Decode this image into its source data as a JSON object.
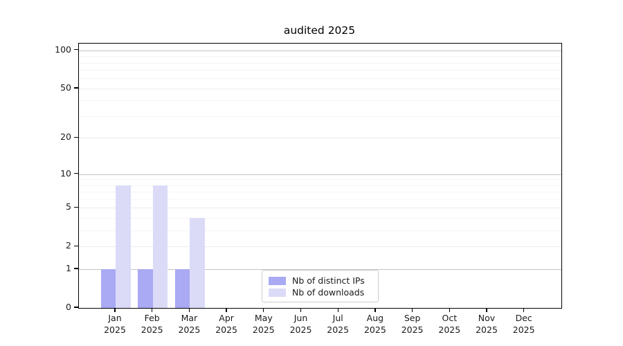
{
  "title": "audited 2025",
  "colors": {
    "distinct_ips_bar": "#a9a9f4",
    "downloads_bar": "#dbdbf8",
    "grid_power10": "#c3c3c3",
    "grid_major": "#ebebeb",
    "grid_minor": "#f4f4f4",
    "spine": "#000000",
    "tick_text": "#1a1a1a",
    "legend_border": "#cccccc"
  },
  "chart_data": {
    "type": "bar",
    "title": "audited 2025",
    "categories": [
      "Jan",
      "Feb",
      "Mar",
      "Apr",
      "May",
      "Jun",
      "Jul",
      "Aug",
      "Sep",
      "Oct",
      "Nov",
      "Dec"
    ],
    "category_year": "2025",
    "series": [
      {
        "name": "Nb of distinct IPs",
        "color": "#a9a9f4",
        "values": [
          1,
          1,
          1,
          0,
          0,
          0,
          0,
          0,
          0,
          0,
          0,
          0
        ]
      },
      {
        "name": "Nb of downloads",
        "color": "#dbdbf8",
        "values": [
          8,
          8,
          4,
          0,
          0,
          0,
          0,
          0,
          0,
          0,
          0,
          0
        ]
      }
    ],
    "xlabel": "",
    "ylabel": "",
    "yscale": "log1p",
    "ylim": [
      0,
      113
    ],
    "yticks": [
      0,
      1,
      2,
      5,
      10,
      20,
      50,
      100
    ],
    "minor_yticks": [
      3,
      4,
      6,
      7,
      8,
      9,
      30,
      40,
      60,
      70,
      80,
      90
    ],
    "emphasized_gridlines": [
      1,
      10,
      100
    ],
    "grid": true,
    "legend_position": "lower-center-inside"
  }
}
